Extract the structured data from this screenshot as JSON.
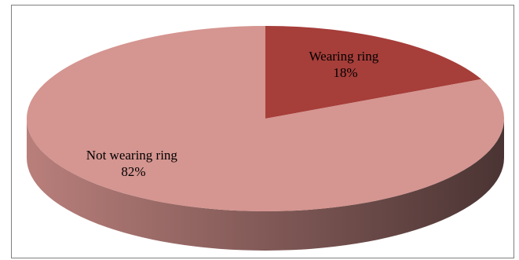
{
  "chart_data": {
    "type": "pie",
    "style": "3d",
    "title": "",
    "slices": [
      {
        "label": "Wearing ring",
        "value": 18,
        "value_label": "18%",
        "color": "#a63e3a"
      },
      {
        "label": "Not wearing ring",
        "value": 82,
        "value_label": "82%",
        "color": "#d59590"
      }
    ],
    "side_colors": {
      "light": "#b97f7b",
      "dark": "#4a3433"
    },
    "border_color": "#7f7f7f"
  }
}
